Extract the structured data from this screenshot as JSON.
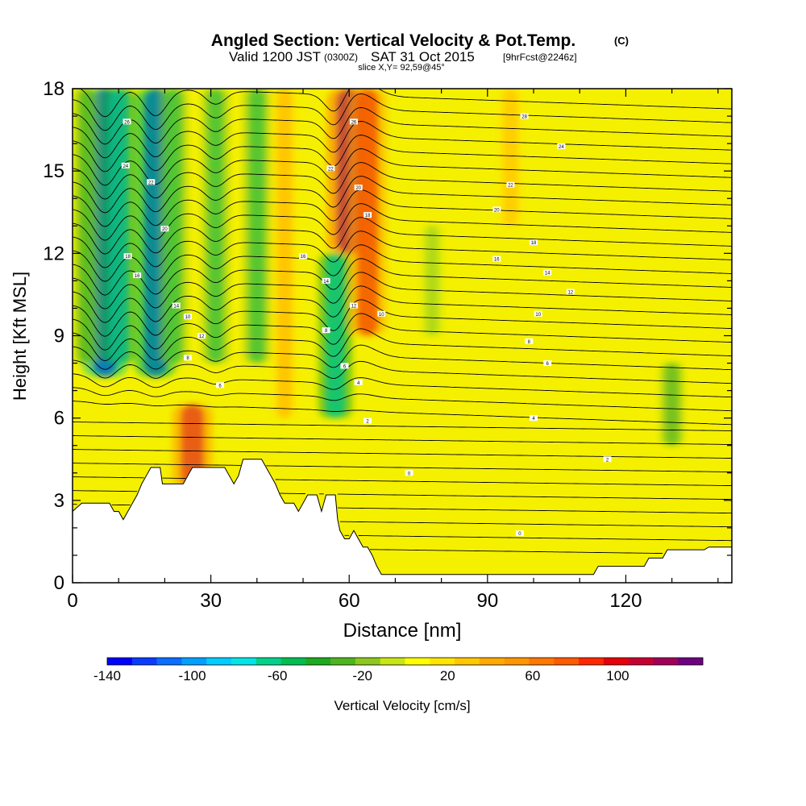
{
  "chart_data": {
    "type": "heatmap",
    "title": "Angled Section: Vertical Velocity & Pot.Temp.",
    "title_units": "(C)",
    "subtitle": {
      "valid": "Valid 1200 JST",
      "utc": "(0300Z)",
      "date": "SAT 31 Oct 2015",
      "forecast": "[9hrFcst@2246z]"
    },
    "slice_label": "slice X,Y= 92,59@45°",
    "xlabel": "Distance [nm]",
    "ylabel": "Height [Kft MSL]",
    "xlim": [
      0,
      143
    ],
    "ylim": [
      0,
      18
    ],
    "x_ticks": [
      {
        "value": 0,
        "label": "0"
      },
      {
        "value": 30,
        "label": "30"
      },
      {
        "value": 60,
        "label": "60"
      },
      {
        "value": 90,
        "label": "90"
      },
      {
        "value": 120,
        "label": "120"
      }
    ],
    "y_ticks": [
      {
        "value": 0,
        "label": "0"
      },
      {
        "value": 3,
        "label": "3"
      },
      {
        "value": 6,
        "label": "6"
      },
      {
        "value": 9,
        "label": "9"
      },
      {
        "value": 12,
        "label": "12"
      },
      {
        "value": 15,
        "label": "15"
      },
      {
        "value": 18,
        "label": "18"
      }
    ],
    "colorbar": {
      "label": "Vertical Velocity [cm/s]",
      "range": [
        -140,
        140
      ],
      "tick_labels": [
        {
          "value": -140,
          "label": "-140"
        },
        {
          "value": -100,
          "label": "-100"
        },
        {
          "value": -60,
          "label": "-60"
        },
        {
          "value": -20,
          "label": "-20"
        },
        {
          "value": 20,
          "label": "20"
        },
        {
          "value": 60,
          "label": "60"
        },
        {
          "value": 100,
          "label": "100"
        }
      ],
      "colors": [
        "#0000ff",
        "#0a3cff",
        "#0a6eff",
        "#00a0ff",
        "#00cdff",
        "#00e6e6",
        "#00d28c",
        "#00be50",
        "#1eaa1e",
        "#50b41e",
        "#8cc81e",
        "#c8e614",
        "#ffff00",
        "#ffe600",
        "#ffc800",
        "#ffaa00",
        "#ff9600",
        "#ff7800",
        "#ff5a00",
        "#ff2800",
        "#e6000a",
        "#c80032",
        "#a0005a",
        "#6e0082"
      ]
    },
    "terrain_profile": [
      [
        0,
        2.6
      ],
      [
        2,
        2.9
      ],
      [
        8,
        2.9
      ],
      [
        9,
        2.6
      ],
      [
        10,
        2.6
      ],
      [
        11,
        2.3
      ],
      [
        12,
        2.6
      ],
      [
        13,
        2.9
      ],
      [
        14,
        3.2
      ],
      [
        15,
        3.6
      ],
      [
        16,
        3.9
      ],
      [
        17,
        4.2
      ],
      [
        19,
        4.2
      ],
      [
        19.5,
        3.6
      ],
      [
        24,
        3.6
      ],
      [
        25,
        3.9
      ],
      [
        26,
        4.2
      ],
      [
        33,
        4.2
      ],
      [
        34,
        3.9
      ],
      [
        35,
        3.6
      ],
      [
        36,
        3.9
      ],
      [
        37,
        4.5
      ],
      [
        41,
        4.5
      ],
      [
        42,
        4.2
      ],
      [
        43,
        3.9
      ],
      [
        44,
        3.6
      ],
      [
        45,
        3.2
      ],
      [
        46,
        2.9
      ],
      [
        48,
        2.9
      ],
      [
        49,
        2.6
      ],
      [
        50,
        2.9
      ],
      [
        51,
        3.2
      ],
      [
        53,
        3.2
      ],
      [
        54,
        2.6
      ],
      [
        55,
        3.2
      ],
      [
        57,
        3.2
      ],
      [
        57.5,
        2.3
      ],
      [
        58,
        1.9
      ],
      [
        59,
        1.6
      ],
      [
        60,
        1.6
      ],
      [
        61,
        1.9
      ],
      [
        62,
        1.6
      ],
      [
        63,
        1.3
      ],
      [
        64,
        1.3
      ],
      [
        65,
        1.0
      ],
      [
        66,
        0.6
      ],
      [
        67,
        0.3
      ],
      [
        113,
        0.3
      ],
      [
        114,
        0.6
      ],
      [
        124,
        0.6
      ],
      [
        125,
        0.9
      ],
      [
        128,
        0.9
      ],
      [
        129,
        1.2
      ],
      [
        137,
        1.2
      ],
      [
        138,
        1.3
      ],
      [
        143,
        1.3
      ]
    ],
    "vertical_velocity_cells": [
      {
        "x": 7,
        "y": [
          7.5,
          18
        ],
        "value": -140
      },
      {
        "x": 10,
        "y": [
          8,
          18
        ],
        "value": -90
      },
      {
        "x": 3,
        "y": [
          8,
          18
        ],
        "value": -40
      },
      {
        "x": 18,
        "y": [
          7.5,
          18
        ],
        "value": -120
      },
      {
        "x": 22,
        "y": [
          8,
          18
        ],
        "value": -50
      },
      {
        "x": 26,
        "y": [
          3.5,
          6.5
        ],
        "value": 110
      },
      {
        "x": 31,
        "y": [
          8,
          18
        ],
        "value": -50
      },
      {
        "x": 40,
        "y": [
          8,
          18
        ],
        "value": -50
      },
      {
        "x": 46,
        "y": [
          6,
          18
        ],
        "value": 50
      },
      {
        "x": 57,
        "y": [
          6,
          12
        ],
        "value": -80
      },
      {
        "x": 60,
        "y": [
          12,
          18
        ],
        "value": 130
      },
      {
        "x": 64,
        "y": [
          9,
          18
        ],
        "value": 100
      },
      {
        "x": 78,
        "y": [
          9,
          13
        ],
        "value": -20
      },
      {
        "x": 95,
        "y": [
          13,
          18
        ],
        "value": 40
      },
      {
        "x": 130,
        "y": [
          5,
          8
        ],
        "value": -30
      }
    ],
    "theta_contour_labels": [
      {
        "x": 11.5,
        "y": 15.2,
        "label": "24"
      },
      {
        "x": 11.8,
        "y": 16.8,
        "label": "26"
      },
      {
        "x": 17,
        "y": 14.6,
        "label": "22"
      },
      {
        "x": 20,
        "y": 12.9,
        "label": "20"
      },
      {
        "x": 12,
        "y": 11.9,
        "label": "18"
      },
      {
        "x": 14,
        "y": 11.2,
        "label": "16"
      },
      {
        "x": 22.5,
        "y": 10.1,
        "label": "14"
      },
      {
        "x": 28,
        "y": 9.0,
        "label": "12"
      },
      {
        "x": 25,
        "y": 9.7,
        "label": "10"
      },
      {
        "x": 25,
        "y": 8.2,
        "label": "8"
      },
      {
        "x": 32,
        "y": 7.2,
        "label": "6"
      },
      {
        "x": 56,
        "y": 15.1,
        "label": "22"
      },
      {
        "x": 62,
        "y": 14.4,
        "label": "20"
      },
      {
        "x": 64,
        "y": 13.4,
        "label": "18"
      },
      {
        "x": 61,
        "y": 16.8,
        "label": "26"
      },
      {
        "x": 50,
        "y": 11.9,
        "label": "16"
      },
      {
        "x": 55,
        "y": 11.0,
        "label": "14"
      },
      {
        "x": 61,
        "y": 10.1,
        "label": "12"
      },
      {
        "x": 67,
        "y": 9.8,
        "label": "10"
      },
      {
        "x": 55,
        "y": 9.2,
        "label": "8"
      },
      {
        "x": 59,
        "y": 7.9,
        "label": "6"
      },
      {
        "x": 62,
        "y": 7.3,
        "label": "4"
      },
      {
        "x": 64,
        "y": 5.9,
        "label": "2"
      },
      {
        "x": 73,
        "y": 4.0,
        "label": "0"
      },
      {
        "x": 98,
        "y": 17.0,
        "label": "28"
      },
      {
        "x": 106,
        "y": 15.9,
        "label": "24"
      },
      {
        "x": 95,
        "y": 14.5,
        "label": "22"
      },
      {
        "x": 92,
        "y": 13.6,
        "label": "20"
      },
      {
        "x": 100,
        "y": 12.4,
        "label": "18"
      },
      {
        "x": 92,
        "y": 11.8,
        "label": "16"
      },
      {
        "x": 103,
        "y": 11.3,
        "label": "14"
      },
      {
        "x": 108,
        "y": 10.6,
        "label": "12"
      },
      {
        "x": 101,
        "y": 9.8,
        "label": "10"
      },
      {
        "x": 99,
        "y": 8.8,
        "label": "8"
      },
      {
        "x": 103,
        "y": 8.0,
        "label": "6"
      },
      {
        "x": 100,
        "y": 6.0,
        "label": "4"
      },
      {
        "x": 116,
        "y": 4.5,
        "label": "2"
      },
      {
        "x": 97,
        "y": 1.8,
        "label": "0"
      }
    ]
  }
}
